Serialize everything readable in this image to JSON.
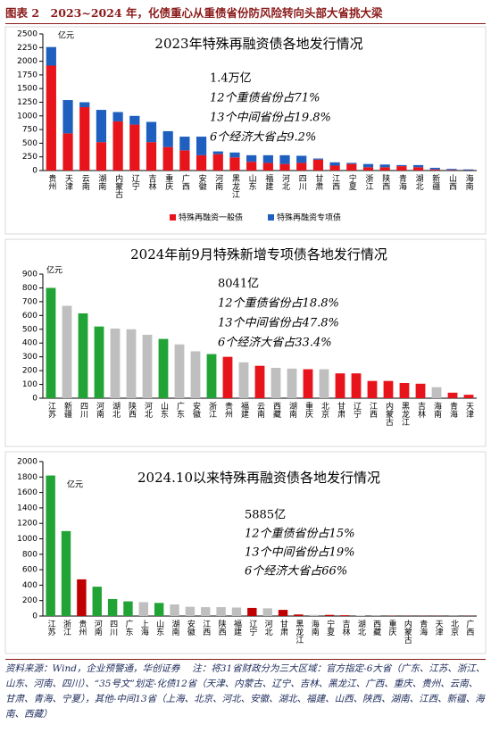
{
  "header": {
    "title": "图表 2　2023~2024 年，化债重心从重债省份防风险转向头部大省挑大梁"
  },
  "chart_data": [
    {
      "type": "stacked_bar",
      "title": "2023年特殊再融资债各地发行情况",
      "y_unit": "亿元",
      "categories": [
        "贵州",
        "天津",
        "云南",
        "湖南",
        "内蒙古",
        "辽宁",
        "吉林",
        "重庆",
        "广西",
        "安徽",
        "河南",
        "黑龙江",
        "山东",
        "福建",
        "河北",
        "四川",
        "甘肃",
        "江西",
        "宁夏",
        "浙江",
        "陕西",
        "青海",
        "湖北",
        "新疆",
        "山西",
        "海南"
      ],
      "series": [
        {
          "name": "特殊再融资一般债",
          "color": "#e8141b",
          "values": [
            1920,
            680,
            1160,
            520,
            900,
            840,
            520,
            430,
            370,
            280,
            300,
            240,
            160,
            140,
            120,
            140,
            200,
            90,
            120,
            60,
            60,
            80,
            60,
            20,
            10,
            5
          ]
        },
        {
          "name": "特殊再融资专项债",
          "color": "#1f5fbf",
          "values": [
            340,
            610,
            90,
            590,
            170,
            160,
            370,
            290,
            250,
            340,
            50,
            90,
            120,
            140,
            160,
            130,
            20,
            60,
            20,
            60,
            50,
            20,
            40,
            30,
            20,
            15
          ]
        }
      ],
      "ylim": [
        0,
        2500
      ],
      "yticks": [
        0,
        250,
        500,
        750,
        1000,
        1250,
        1500,
        1750,
        2000,
        2250,
        2500
      ],
      "annotations": [
        {
          "text": "1.4万亿",
          "color": "#000000"
        },
        {
          "text": "12个重债省份占71%",
          "color": "#e8141b"
        },
        {
          "text": "13个中间省份占19.8%",
          "color": "#a6a6a6"
        },
        {
          "text": "6个经济大省占9.2%",
          "color": "#21a336"
        }
      ]
    },
    {
      "type": "bar",
      "title": "2024年前9月特殊新增专项债各地发行情况",
      "y_unit": "亿元",
      "categories": [
        "江苏",
        "新疆",
        "四川",
        "河南",
        "湖北",
        "陕西",
        "河北",
        "山东",
        "广东",
        "安徽",
        "浙江",
        "贵州",
        "福建",
        "云南",
        "西藏",
        "湖南",
        "重庆",
        "北京",
        "甘肃",
        "辽宁",
        "江西",
        "内蒙古",
        "黑龙江",
        "吉林",
        "海南",
        "青海",
        "天津"
      ],
      "values": [
        800,
        670,
        615,
        520,
        505,
        500,
        460,
        430,
        390,
        340,
        320,
        300,
        260,
        235,
        220,
        215,
        210,
        210,
        180,
        180,
        125,
        125,
        110,
        105,
        80,
        40,
        25
      ],
      "colors": [
        "#21a336",
        "#bfbfbf",
        "#21a336",
        "#21a336",
        "#bfbfbf",
        "#bfbfbf",
        "#bfbfbf",
        "#21a336",
        "#bfbfbf",
        "#bfbfbf",
        "#21a336",
        "#e8141b",
        "#bfbfbf",
        "#e8141b",
        "#bfbfbf",
        "#bfbfbf",
        "#e8141b",
        "#bfbfbf",
        "#e8141b",
        "#e8141b",
        "#e8141b",
        "#e8141b",
        "#e8141b",
        "#e8141b",
        "#bfbfbf",
        "#e8141b",
        "#e8141b"
      ],
      "ylim": [
        0,
        900
      ],
      "yticks": [
        0,
        100,
        200,
        300,
        400,
        500,
        600,
        700,
        800,
        900
      ],
      "annotations": [
        {
          "text": "8041亿",
          "color": "#000000"
        },
        {
          "text": "12个重债省份占18.8%",
          "color": "#e8141b"
        },
        {
          "text": "13个中间省份占47.8%",
          "color": "#a6a6a6"
        },
        {
          "text": "6个经济大省占33.4%",
          "color": "#21a336"
        }
      ]
    },
    {
      "type": "bar",
      "title": "2024.10以来特殊再融资债各地发行情况",
      "y_unit": "亿元",
      "categories": [
        "江苏",
        "浙江",
        "贵州",
        "河南",
        "四川",
        "广东",
        "上海",
        "山东",
        "湖南",
        "安徽",
        "江西",
        "陕西",
        "福建",
        "辽宁",
        "河北",
        "甘肃",
        "黑龙江",
        "海南",
        "宁夏",
        "吉林",
        "湖北",
        "西藏",
        "重庆",
        "内蒙古",
        "青海",
        "天津",
        "北京",
        "广西"
      ],
      "values": [
        1820,
        1100,
        475,
        380,
        220,
        190,
        180,
        170,
        150,
        120,
        115,
        115,
        110,
        105,
        100,
        80,
        20,
        15,
        15,
        10,
        5,
        3,
        3,
        2,
        2,
        2,
        2,
        2
      ],
      "colors": [
        "#21a336",
        "#21a336",
        "#c00000",
        "#21a336",
        "#21a336",
        "#21a336",
        "#bfbfbf",
        "#21a336",
        "#bfbfbf",
        "#bfbfbf",
        "#bfbfbf",
        "#bfbfbf",
        "#bfbfbf",
        "#c00000",
        "#bfbfbf",
        "#c00000",
        "#c00000",
        "#bfbfbf",
        "#c00000",
        "#c00000",
        "#bfbfbf",
        "#bfbfbf",
        "#c00000",
        "#c00000",
        "#c00000",
        "#c00000",
        "#bfbfbf",
        "#c00000"
      ],
      "ylim": [
        0,
        2000
      ],
      "yticks": [
        0,
        200,
        400,
        600,
        800,
        1000,
        1200,
        1400,
        1600,
        1800,
        2000
      ],
      "annotations": [
        {
          "text": "5885亿",
          "color": "#000000"
        },
        {
          "text": "12个重债省份占15%",
          "color": "#e8141b"
        },
        {
          "text": "13个中间省份占19%",
          "color": "#a6a6a6"
        },
        {
          "text": "6个经济大省占66%",
          "color": "#21a336"
        }
      ]
    }
  ],
  "footer": {
    "source": "资料来源：Wind，企业预警通，华创证券",
    "note": "注：将31省财政分为三大区域：官方指定-6大省（广东、江苏、浙江、山东、河南、四川）、“35号文”划定-化债12省（天津、内蒙古、辽宁、吉林、黑龙江、广西、重庆、贵州、云南、甘肃、青海、宁夏），其他-中间13省（上海、北京、河北、安徽、湖北、福建、山西、陕西、湖南、江西、新疆、海南、西藏）"
  }
}
